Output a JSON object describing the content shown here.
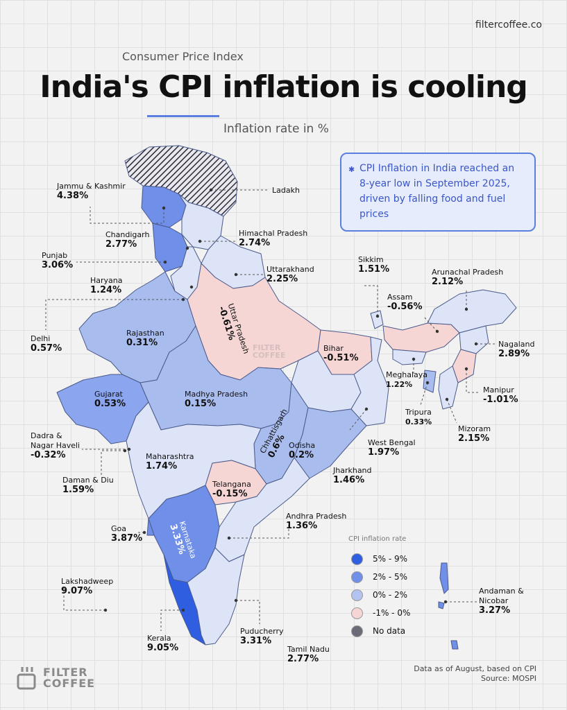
{
  "header": {
    "site": "filtercoffee.co",
    "eyebrow": "Consumer Price Index",
    "title": "India's CPI inflation is cooling",
    "subtitle": "Inflation rate in %"
  },
  "callout": "CPI Inflation in India reached an 8-year low in September 2025, driven by falling food and fuel prices",
  "regions": {
    "jk": {
      "name": "Jammu & Kashmir",
      "value": "4.38%"
    },
    "ladakh": {
      "name": "Ladakh"
    },
    "chandigarh": {
      "name": "Chandigarh",
      "value": "2.77%"
    },
    "hp": {
      "name": "Himachal Pradesh",
      "value": "2.74%"
    },
    "punjab": {
      "name": "Punjab",
      "value": "3.06%"
    },
    "haryana": {
      "name": "Haryana",
      "value": "1.24%"
    },
    "uttarakhand": {
      "name": "Uttarakhand",
      "value": "2.25%"
    },
    "delhi": {
      "name": "Delhi",
      "value": "0.57%"
    },
    "rajasthan": {
      "name": "Rajasthan",
      "value": "0.31%"
    },
    "up": {
      "name": "Uttar Pradesh",
      "value": "-0.61%"
    },
    "bihar": {
      "name": "Bihar",
      "value": "-0.51%"
    },
    "sikkim": {
      "name": "Sikkim",
      "value": "1.51%"
    },
    "arunachal": {
      "name": "Arunachal Pradesh",
      "value": "2.12%"
    },
    "assam": {
      "name": "Assam",
      "value": "-0.56%"
    },
    "nagaland": {
      "name": "Nagaland",
      "value": "2.89%"
    },
    "meghalaya": {
      "name": "Meghalaya",
      "value": "1.22%"
    },
    "manipur": {
      "name": "Manipur",
      "value": "-1.01%"
    },
    "tripura": {
      "name": "Tripura",
      "value": "0.33%"
    },
    "mizoram": {
      "name": "Mizoram",
      "value": "2.15%"
    },
    "gujarat": {
      "name": "Gujarat",
      "value": "0.53%"
    },
    "mp": {
      "name": "Madhya Pradesh",
      "value": "0.15%"
    },
    "chhattisgarh": {
      "name": "Chhattisgarh",
      "value": "0.6%"
    },
    "dnh": {
      "name": "Dadra & Nagar Haveli",
      "value": "-0.32%"
    },
    "odisha": {
      "name": "Odisha",
      "value": "0.2%"
    },
    "wb": {
      "name": "West Bengal",
      "value": "1.97%"
    },
    "jharkhand": {
      "name": "Jharkhand",
      "value": "1.46%"
    },
    "maharashtra": {
      "name": "Maharashtra",
      "value": "1.74%"
    },
    "dd": {
      "name": "Daman & Diu",
      "value": "1.59%"
    },
    "telangana": {
      "name": "Telangana",
      "value": "-0.15%"
    },
    "ap": {
      "name": "Andhra Pradesh",
      "value": "1.36%"
    },
    "goa": {
      "name": "Goa",
      "value": "3.87%"
    },
    "karnataka": {
      "name": "Karnataka",
      "value": "3.33%"
    },
    "lakshadweep": {
      "name": "Lakshadweep",
      "value": "9.07%"
    },
    "kerala": {
      "name": "Kerala",
      "value": "9.05%"
    },
    "puducherry": {
      "name": "Puducherry",
      "value": "3.31%"
    },
    "tn": {
      "name": "Tamil Nadu",
      "value": "2.77%"
    },
    "an": {
      "name": "Andaman & Nicobar",
      "value": "3.27%"
    }
  },
  "legend": {
    "title": "CPI inflation rate",
    "items": [
      {
        "label": "5% - 9%",
        "color": "#2f5fe0"
      },
      {
        "label": "2% - 5%",
        "color": "#6f8fe8"
      },
      {
        "label": "0% - 2%",
        "color": "#b3c4f0"
      },
      {
        "label": "-1% - 0%",
        "color": "#f6d5d5"
      },
      {
        "label": "No data",
        "color": "#6b6b78"
      }
    ]
  },
  "footnote": {
    "line1": "Data as of August, based on CPI",
    "line2": "Source: MOSPI"
  },
  "brand": {
    "line1": "FILTER",
    "line2": "COFFEE"
  },
  "watermark": {
    "line1": "FILTER",
    "line2": "COFFEE"
  },
  "colors": {
    "c5_9": "#2f5fe0",
    "c2_5": "#6f8fe8",
    "c0_2": "#b3c4f0",
    "neg": "#f6d5d5",
    "nodata": "#6b6b78",
    "accent": "#5b7fe0"
  }
}
